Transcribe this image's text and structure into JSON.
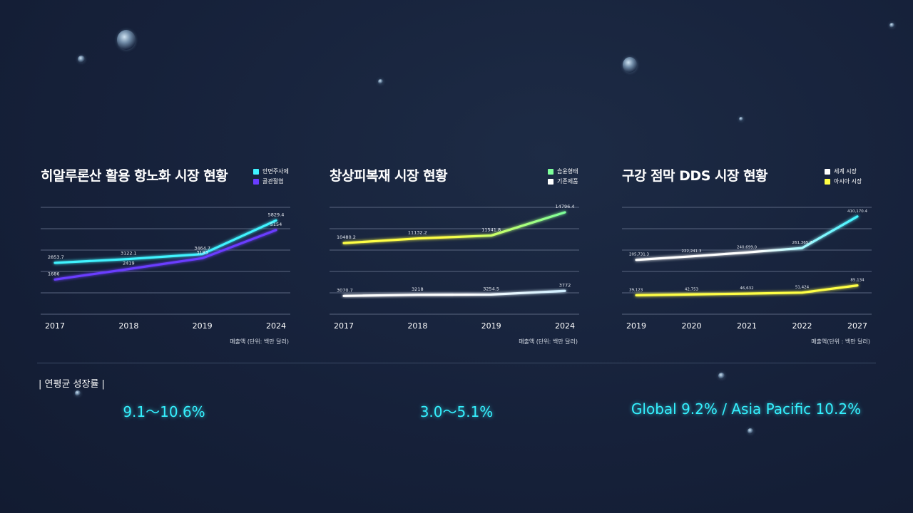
{
  "colors": {
    "cyan": "#3ff3ff",
    "purple": "#6a3cff",
    "green": "#7dff9a",
    "yellow": "#ffff44",
    "white": "#ffffff",
    "grid": "#5a6680"
  },
  "panels": [
    {
      "title": "히알루론산 활용 항노화 시장 현황",
      "unit": "매출액 (단위: 백만 달러)",
      "legend": [
        {
          "label": "안면주사제",
          "color": "#3ff3ff"
        },
        {
          "label": "골관절염",
          "color": "#6a3cff"
        }
      ]
    },
    {
      "title": "창상피복재 시장 현황",
      "unit": "매출액 (단위: 백만 달러)",
      "legend": [
        {
          "label": "습윤형태",
          "color": "#7dff9a"
        },
        {
          "label": "기존제품",
          "color": "#ffffff"
        }
      ]
    },
    {
      "title": "구강 점막 DDS 시장 현황",
      "unit": "매출액(단위 : 백만 달러)",
      "legend": [
        {
          "label": "세계 시장",
          "color": "#ffffff"
        },
        {
          "label": "아시아 시장",
          "color": "#ffff44"
        }
      ]
    }
  ],
  "chart_data": [
    {
      "type": "line",
      "title": "히알루론산 활용 항노화 시장 현황",
      "categories": [
        "2017",
        "2018",
        "2019",
        "2024"
      ],
      "ylim": [
        0,
        7000
      ],
      "series": [
        {
          "name": "안면주사제",
          "values": [
            2853.7,
            3122.1,
            3464.7,
            5829.4
          ],
          "labels": [
            "2853.7",
            "3122.1",
            "3464.7",
            "5829.4"
          ],
          "color": "#3ff3ff"
        },
        {
          "name": "골관절염",
          "values": [
            1686,
            2419,
            3183,
            5154
          ],
          "labels": [
            "1686",
            "2419",
            "3183",
            "5154"
          ],
          "color": "#6a3cff"
        }
      ],
      "legend_position": "top-right",
      "grid": true
    },
    {
      "type": "line",
      "title": "창상피복재 시장 현황",
      "categories": [
        "2017",
        "2018",
        "2019",
        "2024"
      ],
      "ylim": [
        2000,
        16000
      ],
      "series": [
        {
          "name": "습윤형태",
          "values": [
            10480.2,
            11132.2,
            11541.8,
            14796.4
          ],
          "labels": [
            "10480.2",
            "11132.2",
            "11541.8",
            "14796.4"
          ],
          "color": "#7dff9a",
          "gradient_from": "#ffff44"
        },
        {
          "name": "기존제품",
          "values": [
            3070.7,
            3218,
            3254.5,
            3772
          ],
          "labels": [
            "3070.7",
            "3218",
            "3254.5",
            "3772"
          ],
          "color": "#ffffff",
          "gradient_to": "#cfeeff"
        }
      ],
      "legend_position": "top-right",
      "grid": true
    },
    {
      "type": "line",
      "title": "구강 점막 DDS 시장 현황",
      "categories": [
        "2019",
        "2020",
        "2021",
        "2022",
        "2027"
      ],
      "ylim": [
        0,
        470000
      ],
      "series": [
        {
          "name": "세계 시장",
          "values": [
            205731.3,
            222241.3,
            240699,
            261365.7,
            410170.4
          ],
          "labels": [
            "205,731.3",
            "222,241.3",
            "240,699.0",
            "261,365.7",
            "410,170.4"
          ],
          "color": "#ffffff",
          "gradient_to": "#3ff3ff"
        },
        {
          "name": "아시아 시장",
          "values": [
            39123,
            42753,
            46632,
            51424,
            85134
          ],
          "labels": [
            "39,123",
            "42,753",
            "46,632",
            "51,424",
            "85,134"
          ],
          "color": "#ffff44"
        }
      ],
      "legend_position": "top-right",
      "grid": true
    }
  ],
  "cagr": {
    "title": "| 연평균 성장률 |",
    "values": [
      "9.1～10.6%",
      "3.0～5.1%",
      "Global 9.2% / Asia Pacific 10.2%"
    ]
  }
}
